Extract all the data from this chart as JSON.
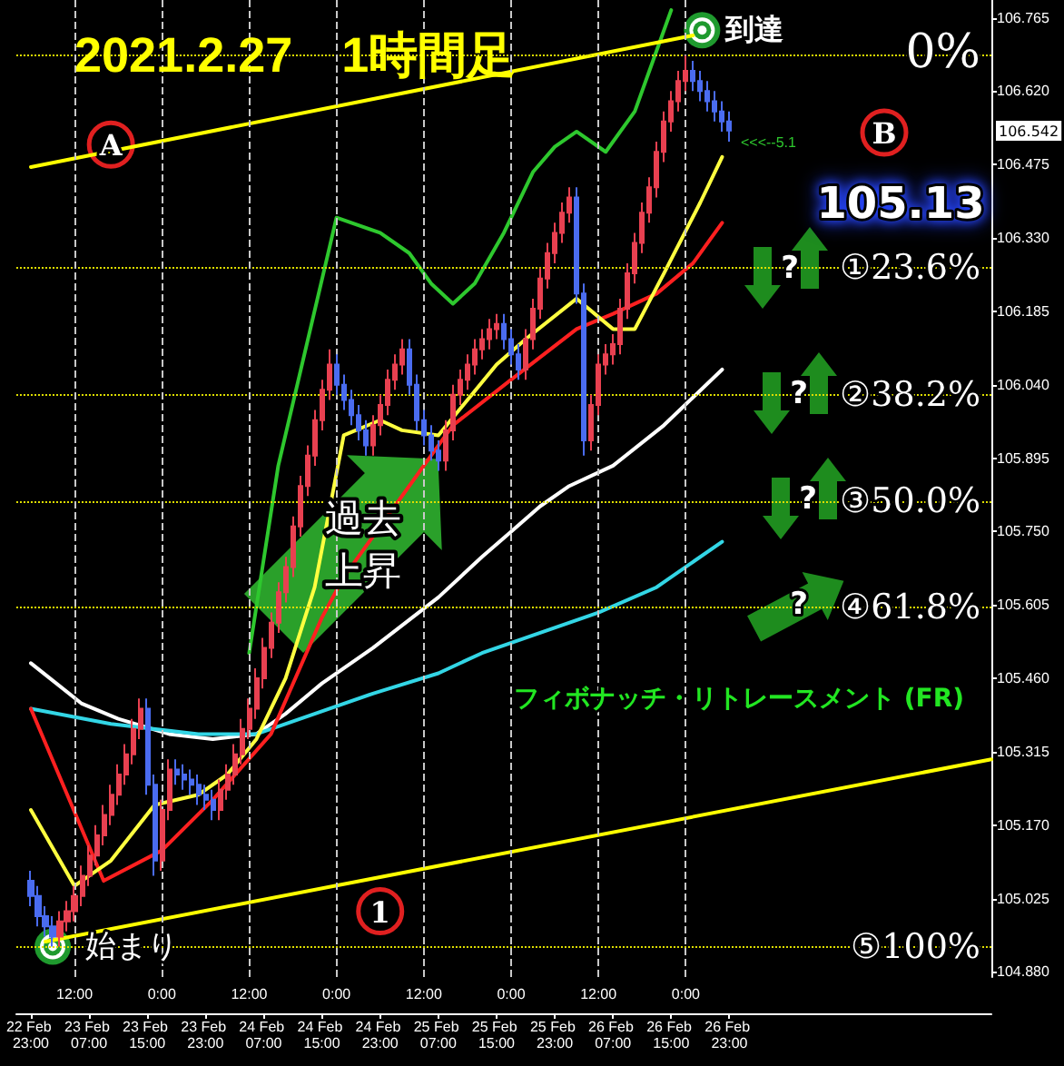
{
  "chart_data": {
    "type": "candlestick",
    "title": "2021.2.27　1時間足",
    "x": [
      "2021-02-22T23:00",
      "2021-02-23T00:00",
      "2021-02-23T01:00",
      "2021-02-23T02:00",
      "2021-02-23T03:00",
      "2021-02-23T04:00",
      "2021-02-23T05:00",
      "2021-02-23T06:00",
      "2021-02-23T07:00",
      "2021-02-23T08:00",
      "2021-02-23T09:00",
      "2021-02-23T10:00",
      "2021-02-23T11:00",
      "2021-02-23T12:00",
      "2021-02-23T13:00",
      "2021-02-23T14:00",
      "2021-02-23T15:00",
      "2021-02-23T16:00",
      "2021-02-23T17:00",
      "2021-02-23T18:00",
      "2021-02-23T19:00",
      "2021-02-23T20:00",
      "2021-02-23T21:00",
      "2021-02-23T22:00",
      "2021-02-23T23:00",
      "2021-02-24T00:00",
      "2021-02-24T01:00",
      "2021-02-24T02:00",
      "2021-02-24T03:00",
      "2021-02-24T04:00",
      "2021-02-24T05:00",
      "2021-02-24T06:00",
      "2021-02-24T07:00",
      "2021-02-24T08:00",
      "2021-02-24T09:00",
      "2021-02-24T10:00",
      "2021-02-24T11:00",
      "2021-02-24T12:00",
      "2021-02-24T13:00",
      "2021-02-24T14:00",
      "2021-02-24T15:00",
      "2021-02-24T16:00",
      "2021-02-24T17:00",
      "2021-02-24T18:00",
      "2021-02-24T19:00",
      "2021-02-24T20:00",
      "2021-02-24T21:00",
      "2021-02-24T22:00",
      "2021-02-24T23:00",
      "2021-02-25T00:00",
      "2021-02-25T01:00",
      "2021-02-25T02:00",
      "2021-02-25T03:00",
      "2021-02-25T04:00",
      "2021-02-25T05:00",
      "2021-02-25T06:00",
      "2021-02-25T07:00",
      "2021-02-25T08:00",
      "2021-02-25T09:00",
      "2021-02-25T10:00",
      "2021-02-25T11:00",
      "2021-02-25T12:00",
      "2021-02-25T13:00",
      "2021-02-25T14:00",
      "2021-02-25T15:00",
      "2021-02-25T16:00",
      "2021-02-25T17:00",
      "2021-02-25T18:00",
      "2021-02-25T19:00",
      "2021-02-25T20:00",
      "2021-02-25T21:00",
      "2021-02-25T22:00",
      "2021-02-25T23:00",
      "2021-02-26T00:00",
      "2021-02-26T01:00",
      "2021-02-26T02:00",
      "2021-02-26T03:00",
      "2021-02-26T04:00",
      "2021-02-26T05:00",
      "2021-02-26T06:00",
      "2021-02-26T07:00",
      "2021-02-26T08:00",
      "2021-02-26T09:00",
      "2021-02-26T10:00",
      "2021-02-26T11:00",
      "2021-02-26T12:00",
      "2021-02-26T13:00",
      "2021-02-26T14:00",
      "2021-02-26T15:00",
      "2021-02-26T16:00",
      "2021-02-26T17:00",
      "2021-02-26T18:00",
      "2021-02-26T19:00",
      "2021-02-26T20:00",
      "2021-02-26T21:00",
      "2021-02-26T22:00",
      "2021-02-26T23:00"
    ],
    "ohlc": [
      [
        105.06,
        105.08,
        105.01,
        105.03
      ],
      [
        105.03,
        105.05,
        104.97,
        104.99
      ],
      [
        104.99,
        105.01,
        104.95,
        104.97
      ],
      [
        104.97,
        104.99,
        104.93,
        104.95
      ],
      [
        104.95,
        105.0,
        104.93,
        104.98
      ],
      [
        104.98,
        105.02,
        104.96,
        105.0
      ],
      [
        105.0,
        105.05,
        104.98,
        105.03
      ],
      [
        105.03,
        105.09,
        105.01,
        105.07
      ],
      [
        105.07,
        105.13,
        105.05,
        105.11
      ],
      [
        105.11,
        105.17,
        105.09,
        105.15
      ],
      [
        105.15,
        105.21,
        105.13,
        105.19
      ],
      [
        105.19,
        105.25,
        105.17,
        105.23
      ],
      [
        105.23,
        105.29,
        105.21,
        105.27
      ],
      [
        105.27,
        105.33,
        105.25,
        105.31
      ],
      [
        105.31,
        105.38,
        105.29,
        105.36
      ],
      [
        105.36,
        105.42,
        105.34,
        105.4
      ],
      [
        105.4,
        105.42,
        105.23,
        105.25
      ],
      [
        105.25,
        105.27,
        105.07,
        105.1
      ],
      [
        105.1,
        105.22,
        105.08,
        105.2
      ],
      [
        105.2,
        105.3,
        105.18,
        105.28
      ],
      [
        105.28,
        105.3,
        105.25,
        105.27
      ],
      [
        105.27,
        105.29,
        105.24,
        105.26
      ],
      [
        105.26,
        105.28,
        105.23,
        105.25
      ],
      [
        105.25,
        105.27,
        105.21,
        105.23
      ],
      [
        105.23,
        105.25,
        105.2,
        105.22
      ],
      [
        105.22,
        105.24,
        105.18,
        105.2
      ],
      [
        105.2,
        105.26,
        105.18,
        105.24
      ],
      [
        105.24,
        105.29,
        105.22,
        105.27
      ],
      [
        105.27,
        105.33,
        105.25,
        105.31
      ],
      [
        105.31,
        105.38,
        105.29,
        105.36
      ],
      [
        105.36,
        105.42,
        105.34,
        105.4
      ],
      [
        105.4,
        105.48,
        105.38,
        105.46
      ],
      [
        105.46,
        105.54,
        105.44,
        105.52
      ],
      [
        105.52,
        105.59,
        105.5,
        105.57
      ],
      [
        105.57,
        105.65,
        105.55,
        105.63
      ],
      [
        105.63,
        105.7,
        105.61,
        105.68
      ],
      [
        105.68,
        105.78,
        105.66,
        105.76
      ],
      [
        105.76,
        105.86,
        105.74,
        105.84
      ],
      [
        105.84,
        105.92,
        105.82,
        105.9
      ],
      [
        105.9,
        105.99,
        105.88,
        105.97
      ],
      [
        105.97,
        106.05,
        105.95,
        106.03
      ],
      [
        106.03,
        106.11,
        106.01,
        106.08
      ],
      [
        106.08,
        106.1,
        106.02,
        106.04
      ],
      [
        106.04,
        106.06,
        105.99,
        106.01
      ],
      [
        106.01,
        106.03,
        105.96,
        105.98
      ],
      [
        105.98,
        106.0,
        105.93,
        105.95
      ],
      [
        105.95,
        105.97,
        105.9,
        105.92
      ],
      [
        105.92,
        105.98,
        105.9,
        105.96
      ],
      [
        105.96,
        106.02,
        105.94,
        106.0
      ],
      [
        106.0,
        106.07,
        105.98,
        106.05
      ],
      [
        106.05,
        106.1,
        106.03,
        106.08
      ],
      [
        106.08,
        106.13,
        106.06,
        106.11
      ],
      [
        106.11,
        106.13,
        106.02,
        106.04
      ],
      [
        106.04,
        106.06,
        105.95,
        105.97
      ],
      [
        105.97,
        105.99,
        105.92,
        105.94
      ],
      [
        105.94,
        105.96,
        105.89,
        105.91
      ],
      [
        105.91,
        105.93,
        105.87,
        105.89
      ],
      [
        105.89,
        105.97,
        105.87,
        105.95
      ],
      [
        105.95,
        106.04,
        105.93,
        106.02
      ],
      [
        106.02,
        106.07,
        106.0,
        106.05
      ],
      [
        106.05,
        106.1,
        106.03,
        106.08
      ],
      [
        106.08,
        106.13,
        106.06,
        106.11
      ],
      [
        106.11,
        106.15,
        106.09,
        106.13
      ],
      [
        106.13,
        106.17,
        106.11,
        106.15
      ],
      [
        106.15,
        106.18,
        106.13,
        106.16
      ],
      [
        106.16,
        106.18,
        106.11,
        106.13
      ],
      [
        106.13,
        106.15,
        106.08,
        106.1
      ],
      [
        106.1,
        106.12,
        106.05,
        106.07
      ],
      [
        106.07,
        106.15,
        106.05,
        106.13
      ],
      [
        106.13,
        106.21,
        106.11,
        106.19
      ],
      [
        106.19,
        106.27,
        106.17,
        106.25
      ],
      [
        106.25,
        106.32,
        106.23,
        106.3
      ],
      [
        106.3,
        106.36,
        106.28,
        106.34
      ],
      [
        106.34,
        106.4,
        106.32,
        106.38
      ],
      [
        106.38,
        106.43,
        106.36,
        106.41
      ],
      [
        106.41,
        106.43,
        106.2,
        106.22
      ],
      [
        106.22,
        106.24,
        105.9,
        105.93
      ],
      [
        105.93,
        106.02,
        105.91,
        106.0
      ],
      [
        106.0,
        106.1,
        105.98,
        106.08
      ],
      [
        106.08,
        106.12,
        106.06,
        106.1
      ],
      [
        106.1,
        106.14,
        106.08,
        106.12
      ],
      [
        106.12,
        106.21,
        106.1,
        106.19
      ],
      [
        106.19,
        106.28,
        106.17,
        106.26
      ],
      [
        106.26,
        106.34,
        106.24,
        106.32
      ],
      [
        106.32,
        106.4,
        106.3,
        106.38
      ],
      [
        106.38,
        106.45,
        106.36,
        106.43
      ],
      [
        106.43,
        106.52,
        106.41,
        106.5
      ],
      [
        106.5,
        106.58,
        106.48,
        106.56
      ],
      [
        106.56,
        106.62,
        106.54,
        106.6
      ],
      [
        106.6,
        106.66,
        106.58,
        106.64
      ],
      [
        106.64,
        106.69,
        106.62,
        106.66
      ],
      [
        106.66,
        106.68,
        106.62,
        106.64
      ],
      [
        106.64,
        106.66,
        106.6,
        106.62
      ],
      [
        106.62,
        106.64,
        106.58,
        106.6
      ],
      [
        106.6,
        106.62,
        106.56,
        106.58
      ],
      [
        106.58,
        106.6,
        106.54,
        106.56
      ],
      [
        106.56,
        106.58,
        106.52,
        106.542
      ]
    ],
    "colors": [
      "#4a6cf0",
      "#4a6cf0",
      "#4a6cf0",
      "#4a6cf0",
      "#e84050",
      "#e84050",
      "#e84050",
      "#e84050",
      "#e84050",
      "#e84050",
      "#e84050",
      "#e84050",
      "#e84050",
      "#e84050",
      "#e84050",
      "#e84050",
      "#4a6cf0",
      "#4a6cf0",
      "#e84050",
      "#e84050",
      "#4a6cf0",
      "#4a6cf0",
      "#4a6cf0",
      "#4a6cf0",
      "#4a6cf0",
      "#4a6cf0",
      "#e84050",
      "#e84050",
      "#e84050",
      "#e84050",
      "#e84050",
      "#e84050",
      "#e84050",
      "#e84050",
      "#e84050",
      "#e84050",
      "#e84050",
      "#e84050",
      "#e84050",
      "#e84050",
      "#e84050",
      "#e84050",
      "#4a6cf0",
      "#4a6cf0",
      "#4a6cf0",
      "#4a6cf0",
      "#4a6cf0",
      "#e84050",
      "#e84050",
      "#e84050",
      "#e84050",
      "#e84050",
      "#4a6cf0",
      "#4a6cf0",
      "#4a6cf0",
      "#4a6cf0",
      "#4a6cf0",
      "#e84050",
      "#e84050",
      "#e84050",
      "#e84050",
      "#e84050",
      "#e84050",
      "#e84050",
      "#e84050",
      "#4a6cf0",
      "#4a6cf0",
      "#4a6cf0",
      "#e84050",
      "#e84050",
      "#e84050",
      "#e84050",
      "#e84050",
      "#e84050",
      "#e84050",
      "#4a6cf0",
      "#4a6cf0",
      "#e84050",
      "#e84050",
      "#e84050",
      "#e84050",
      "#e84050",
      "#e84050",
      "#e84050",
      "#e84050",
      "#e84050",
      "#e84050",
      "#e84050",
      "#e84050",
      "#e84050",
      "#e84050",
      "#4a6cf0",
      "#4a6cf0",
      "#4a6cf0",
      "#4a6cf0",
      "#4a6cf0",
      "#4a6cf0"
    ],
    "series": [
      {
        "type": "line",
        "color": "#2ec82e",
        "x": [
          "2021-02-24T05:00",
          "2021-02-24T09:00",
          "2021-02-24T17:00",
          "2021-02-24T23:00",
          "2021-02-25T03:00",
          "2021-02-25T06:00",
          "2021-02-25T09:00",
          "2021-02-25T12:00",
          "2021-02-25T16:00",
          "2021-02-25T20:00",
          "2021-02-25T23:00",
          "2021-02-26T02:00",
          "2021-02-26T06:00",
          "2021-02-26T10:00",
          "2021-02-26T13:00",
          "2021-02-26T15:00"
        ],
        "values": [
          105.51,
          105.88,
          106.37,
          106.34,
          106.3,
          106.24,
          106.2,
          106.24,
          106.34,
          106.46,
          106.51,
          106.54,
          106.5,
          106.58,
          106.7,
          106.78
        ]
      },
      {
        "type": "line",
        "color": "#ffffff",
        "x": [
          "2021-02-22T23:00",
          "2021-02-23T06:00",
          "2021-02-23T11:00",
          "2021-02-23T18:00",
          "2021-02-24T00:00",
          "2021-02-24T06:00",
          "2021-02-24T10:00",
          "2021-02-24T15:00",
          "2021-02-24T22:00",
          "2021-02-25T07:00",
          "2021-02-25T13:00",
          "2021-02-25T17:00",
          "2021-02-25T21:00",
          "2021-02-26T01:00",
          "2021-02-26T07:00",
          "2021-02-26T14:00",
          "2021-02-26T22:00"
        ],
        "values": [
          105.49,
          105.41,
          105.38,
          105.35,
          105.34,
          105.35,
          105.39,
          105.45,
          105.52,
          105.62,
          105.7,
          105.75,
          105.8,
          105.84,
          105.88,
          105.96,
          106.07
        ]
      },
      {
        "type": "line",
        "color": "#33d6e6",
        "x": [
          "2021-02-22T23:00",
          "2021-02-23T10:00",
          "2021-02-23T22:00",
          "2021-02-24T06:00",
          "2021-02-24T14:00",
          "2021-02-24T22:00",
          "2021-02-25T07:00",
          "2021-02-25T13:00",
          "2021-02-25T21:00",
          "2021-02-26T05:00",
          "2021-02-26T13:00",
          "2021-02-26T22:00"
        ],
        "values": [
          105.4,
          105.37,
          105.35,
          105.35,
          105.39,
          105.43,
          105.47,
          105.51,
          105.55,
          105.59,
          105.64,
          105.73
        ]
      },
      {
        "type": "line",
        "color": "#ff2020",
        "x": [
          "2021-02-22T23:00",
          "2021-02-23T09:00",
          "2021-02-23T17:00",
          "2021-02-24T00:00",
          "2021-02-24T08:00",
          "2021-02-24T15:00",
          "2021-02-24T18:00",
          "2021-02-25T01:00",
          "2021-02-25T09:00",
          "2021-02-25T17:00",
          "2021-02-26T02:00",
          "2021-02-26T07:00",
          "2021-02-26T13:00",
          "2021-02-26T18:00",
          "2021-02-26T22:00"
        ],
        "values": [
          105.4,
          105.06,
          105.12,
          105.22,
          105.35,
          105.58,
          105.66,
          105.8,
          105.96,
          106.05,
          106.15,
          106.18,
          106.22,
          106.28,
          106.36
        ]
      },
      {
        "type": "line",
        "color": "#ffff40",
        "x": [
          "2021-02-22T23:00",
          "2021-02-23T05:00",
          "2021-02-23T10:00",
          "2021-02-23T16:00",
          "2021-02-23T22:00",
          "2021-02-24T02:00",
          "2021-02-24T06:00",
          "2021-02-24T10:00",
          "2021-02-24T14:00",
          "2021-02-24T18:00",
          "2021-02-24T23:00",
          "2021-02-25T02:00",
          "2021-02-25T07:00",
          "2021-02-25T15:00",
          "2021-02-25T19:00",
          "2021-02-26T02:00",
          "2021-02-26T07:00",
          "2021-02-26T10:00",
          "2021-02-26T14:00",
          "2021-02-26T19:00",
          "2021-02-26T22:00"
        ],
        "values": [
          105.2,
          105.05,
          105.1,
          105.21,
          105.23,
          105.27,
          105.34,
          105.46,
          105.64,
          105.94,
          105.97,
          105.95,
          105.94,
          106.08,
          106.13,
          106.21,
          106.15,
          106.15,
          106.26,
          106.4,
          106.49
        ]
      },
      {
        "type": "line",
        "color": "#ffff00",
        "x": [
          "2021-02-22T23:00",
          "2021-02-26T18:00"
        ],
        "values": [
          106.47,
          106.73
        ]
      },
      {
        "type": "line",
        "color": "#ffff00",
        "x": [
          "2021-02-23T01:00",
          "2021-02-28T11:00"
        ],
        "values": [
          104.94,
          105.3
        ]
      }
    ],
    "xlim": [
      "2021-02-22T21:00",
      "2021-02-28T11:00"
    ],
    "xticks": [
      {
        "value": "2021-02-22T23:00",
        "label": "22 Feb 23:00"
      },
      {
        "value": "2021-02-23T07:00",
        "label": "23 Feb 07:00"
      },
      {
        "value": "2021-02-23T15:00",
        "label": "23 Feb 15:00"
      },
      {
        "value": "2021-02-23T23:00",
        "label": "23 Feb 23:00"
      },
      {
        "value": "2021-02-24T07:00",
        "label": "24 Feb 07:00"
      },
      {
        "value": "2021-02-24T15:00",
        "label": "24 Feb 15:00"
      },
      {
        "value": "2021-02-24T23:00",
        "label": "24 Feb 23:00"
      },
      {
        "value": "2021-02-25T07:00",
        "label": "25 Feb 07:00"
      },
      {
        "value": "2021-02-25T15:00",
        "label": "25 Feb 15:00"
      },
      {
        "value": "2021-02-25T23:00",
        "label": "25 Feb 23:00"
      },
      {
        "value": "2021-02-26T07:00",
        "label": "26 Feb 07:00"
      },
      {
        "value": "2021-02-26T15:00",
        "label": "26 Feb 15:00"
      },
      {
        "value": "2021-02-26T23:00",
        "label": "26 Feb 23:00"
      }
    ],
    "ylim": [
      104.87,
      106.8
    ],
    "yticks": [
      {
        "value": 104.88,
        "label": "104.880"
      },
      {
        "value": 105.025,
        "label": "105.025"
      },
      {
        "value": 105.17,
        "label": "105.170"
      },
      {
        "value": 105.315,
        "label": "105.315"
      },
      {
        "value": 105.46,
        "label": "105.460"
      },
      {
        "value": 105.605,
        "label": "105.605"
      },
      {
        "value": 105.75,
        "label": "105.750"
      },
      {
        "value": 105.895,
        "label": "105.895"
      },
      {
        "value": 106.04,
        "label": "106.040"
      },
      {
        "value": 106.185,
        "label": "106.185"
      },
      {
        "value": 106.33,
        "label": "106.330"
      },
      {
        "value": 106.475,
        "label": "106.475"
      },
      {
        "value": 106.62,
        "label": "106.620"
      },
      {
        "value": 106.765,
        "label": "106.765"
      }
    ],
    "marker": "none",
    "ref_lines": [
      {
        "axis": "y",
        "value": 106.69,
        "color": "#e0e000",
        "line_style": "dotted"
      },
      {
        "axis": "y",
        "value": 106.27,
        "label": "①23.6%",
        "color": "#e0e000",
        "line_style": "dotted"
      },
      {
        "axis": "y",
        "value": 106.02,
        "label": "②38.2%",
        "color": "#e0e000",
        "line_style": "dotted"
      },
      {
        "axis": "y",
        "value": 105.81,
        "label": "③50.0%",
        "color": "#e0e000",
        "line_style": "dotted"
      },
      {
        "axis": "y",
        "value": 105.6,
        "label": "④61.8%",
        "color": "#e0e000",
        "line_style": "dotted"
      },
      {
        "axis": "y",
        "value": 104.93,
        "label": "⑤100%",
        "color": "#e0e000",
        "line_style": "dotted"
      },
      {
        "axis": "x",
        "value": "2021-02-23T05:00",
        "label": "12:00",
        "color": "#c8c8c8",
        "line_style": "dashed"
      },
      {
        "axis": "x",
        "value": "2021-02-23T17:00",
        "label": "0:00",
        "color": "#c8c8c8",
        "line_style": "dashed"
      },
      {
        "axis": "x",
        "value": "2021-02-24T05:00",
        "label": "12:00",
        "color": "#c8c8c8",
        "line_style": "dashed"
      },
      {
        "axis": "x",
        "value": "2021-02-24T17:00",
        "label": "0:00",
        "color": "#c8c8c8",
        "line_style": "dashed"
      },
      {
        "axis": "x",
        "value": "2021-02-25T05:00",
        "label": "12:00",
        "color": "#c8c8c8",
        "line_style": "dashed"
      },
      {
        "axis": "x",
        "value": "2021-02-25T17:00",
        "label": "0:00",
        "color": "#c8c8c8",
        "line_style": "dashed"
      },
      {
        "axis": "x",
        "value": "2021-02-26T05:00",
        "label": "12:00",
        "color": "#c8c8c8",
        "line_style": "dashed"
      },
      {
        "axis": "x",
        "value": "2021-02-26T17:00",
        "label": "0:00",
        "color": "#c8c8c8",
        "line_style": "dashed"
      }
    ],
    "annotations": [
      {
        "text": "到達",
        "x": "2021-02-26T17:00",
        "y": 106.69
      },
      {
        "text": "始まり",
        "x": "2021-02-23T02:00",
        "y": 104.93
      },
      {
        "text": "A",
        "x": "2021-02-23T10:00",
        "y": 106.5
      },
      "B",
      {
        "text": "1",
        "x": "2021-02-24T23:00",
        "y": 105.0
      },
      "105.13",
      "過去上昇",
      "フィボナッチ・リトレースメント (FR)",
      "?",
      "?",
      "?",
      "?",
      "106.542",
      "0%",
      "<<<--5.1"
    ]
  }
}
